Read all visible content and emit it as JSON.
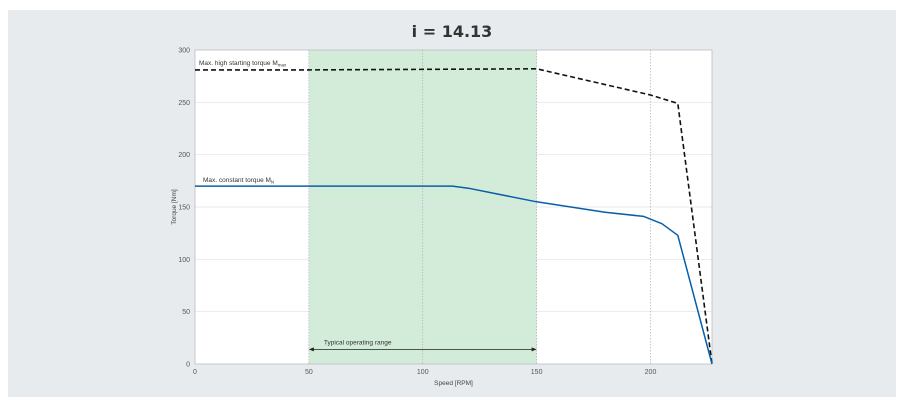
{
  "chart_data": {
    "type": "line",
    "title": "i = 14.13",
    "xlabel": "Speed [RPM]",
    "ylabel": "Torque [Nm]",
    "xlim": [
      0,
      227
    ],
    "ylim": [
      0,
      300
    ],
    "x_ticks": [
      "0",
      "50",
      "100",
      "150",
      "200"
    ],
    "y_ticks": [
      "0",
      "50",
      "100",
      "150",
      "200",
      "250",
      "300"
    ],
    "grid": true,
    "shaded_range": {
      "x_from": 50,
      "x_to": 150,
      "color": "#d3ecd9",
      "label": "Typical operating range"
    },
    "series": [
      {
        "label_main": "Max. high starting torque M",
        "label_sub": "max",
        "style": "dashed",
        "color": "#111111",
        "x": [
          0,
          50,
          150,
          200,
          212,
          227
        ],
        "y": [
          281,
          281,
          282,
          257,
          249,
          0
        ]
      },
      {
        "label_main": "Max. constant torque M",
        "label_sub": "N",
        "style": "solid",
        "color": "#0a5ea8",
        "x": [
          0,
          113,
          120,
          150,
          180,
          197,
          205,
          212,
          227
        ],
        "y": [
          170,
          170,
          168,
          155,
          145,
          141,
          134,
          123,
          0
        ]
      }
    ]
  }
}
